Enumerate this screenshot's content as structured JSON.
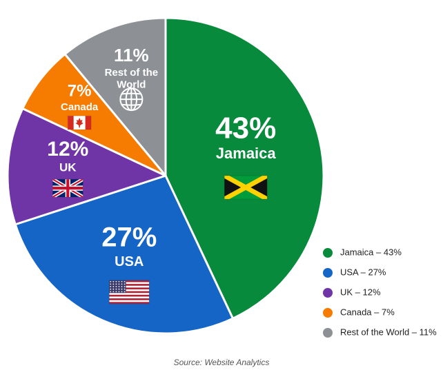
{
  "chart_data": {
    "type": "pie",
    "title": "",
    "slices": [
      {
        "name": "Jamaica",
        "value": 43,
        "pct_label": "43%",
        "color": "#078a3c",
        "legend": "Jamaica – 43%",
        "icon": "jamaica-flag-icon"
      },
      {
        "name": "USA",
        "value": 27,
        "pct_label": "27%",
        "color": "#1565c6",
        "legend": "USA – 27%",
        "icon": "usa-flag-icon"
      },
      {
        "name": "UK",
        "value": 12,
        "pct_label": "12%",
        "color": "#6f35a6",
        "legend": "UK – 12%",
        "icon": "uk-flag-icon"
      },
      {
        "name": "Canada",
        "value": 7,
        "pct_label": "7%",
        "color": "#f57c00",
        "legend": "Canada – 7%",
        "icon": "canada-flag-icon"
      },
      {
        "name": "Rest of the World",
        "value": 11,
        "pct_label": "11%",
        "color": "#8d9196",
        "legend": "Rest of the World – 11%",
        "icon": "globe-icon"
      }
    ],
    "legend_position": "bottom-right"
  },
  "source": "Source: Website Analytics"
}
